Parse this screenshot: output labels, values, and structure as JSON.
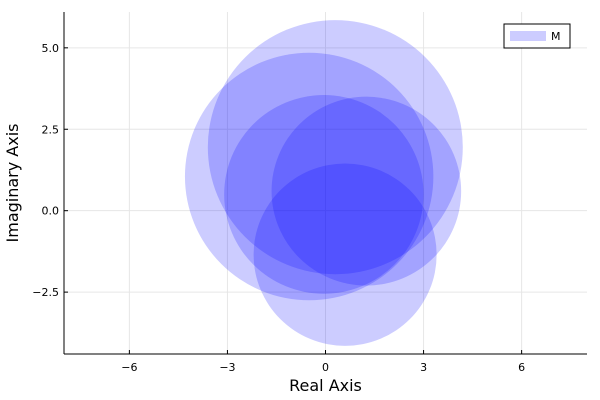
{
  "chart_data": {
    "type": "scatter",
    "marker": "disk",
    "title": "",
    "xlabel": "Real Axis",
    "ylabel": "Imaginary Axis",
    "xlim": [
      -8,
      8
    ],
    "ylim": [
      -4.4,
      6.1
    ],
    "xticks": [
      -6,
      -3,
      0,
      3,
      6
    ],
    "xtick_labels": [
      "−6",
      "−3",
      "0",
      "3",
      "6"
    ],
    "yticks": [
      -2.5,
      0,
      2.5,
      5
    ],
    "ytick_labels": [
      "−2.5",
      "0.0",
      "2.5",
      "5.0"
    ],
    "grid": true,
    "legend_position": "top-right",
    "series": [
      {
        "name": "M",
        "color": "#0000ff",
        "opacity": 0.2,
        "points": [
          {
            "x": 0.3,
            "y": 1.95,
            "r": 3.9
          },
          {
            "x": -0.5,
            "y": 1.05,
            "r": 3.8
          },
          {
            "x": -0.05,
            "y": 0.5,
            "r": 3.05
          },
          {
            "x": 1.25,
            "y": 0.6,
            "r": 2.9
          },
          {
            "x": 0.6,
            "y": -1.35,
            "r": 2.8
          }
        ]
      }
    ]
  }
}
